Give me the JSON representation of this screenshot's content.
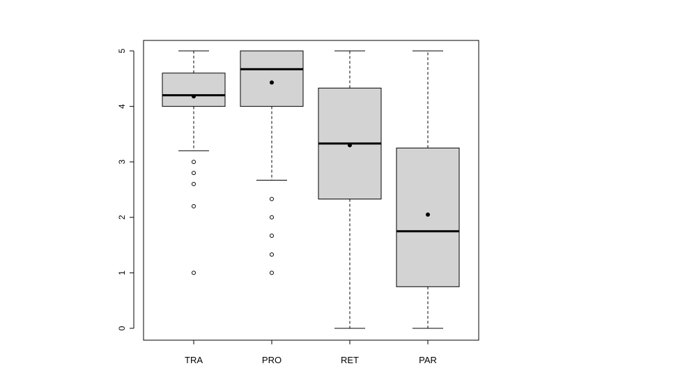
{
  "chart_data": {
    "type": "boxplot",
    "title": "",
    "xlabel": "",
    "ylabel": "",
    "ylim": [
      -0.2,
      5.2
    ],
    "yticks": [
      0,
      1,
      2,
      3,
      4,
      5
    ],
    "ytick_labels": [
      "0",
      "1",
      "2",
      "3",
      "4",
      "5"
    ],
    "categories": [
      "TRA",
      "PRO",
      "RET",
      "PAR"
    ],
    "boxes": [
      {
        "label": "TRA",
        "whisker_low": 3.2,
        "q1": 4.0,
        "median": 4.2,
        "q3": 4.6,
        "whisker_high": 5.0,
        "mean": 4.18,
        "outliers": [
          3.0,
          2.8,
          2.6,
          2.2,
          1.0
        ]
      },
      {
        "label": "PRO",
        "whisker_low": 2.67,
        "q1": 4.0,
        "median": 4.67,
        "q3": 5.0,
        "whisker_high": 5.0,
        "mean": 4.43,
        "outliers": [
          2.33,
          2.0,
          1.67,
          1.33,
          1.0
        ]
      },
      {
        "label": "RET",
        "whisker_low": 0.0,
        "q1": 2.33,
        "median": 3.33,
        "q3": 4.33,
        "whisker_high": 5.0,
        "mean": 3.3,
        "outliers": []
      },
      {
        "label": "PAR",
        "whisker_low": 0.0,
        "q1": 0.75,
        "median": 1.75,
        "q3": 3.25,
        "whisker_high": 5.0,
        "mean": 2.05,
        "outliers": []
      }
    ],
    "box_fill": "#d3d3d3",
    "line_color": "#000000",
    "grid": false,
    "legend": "none"
  }
}
